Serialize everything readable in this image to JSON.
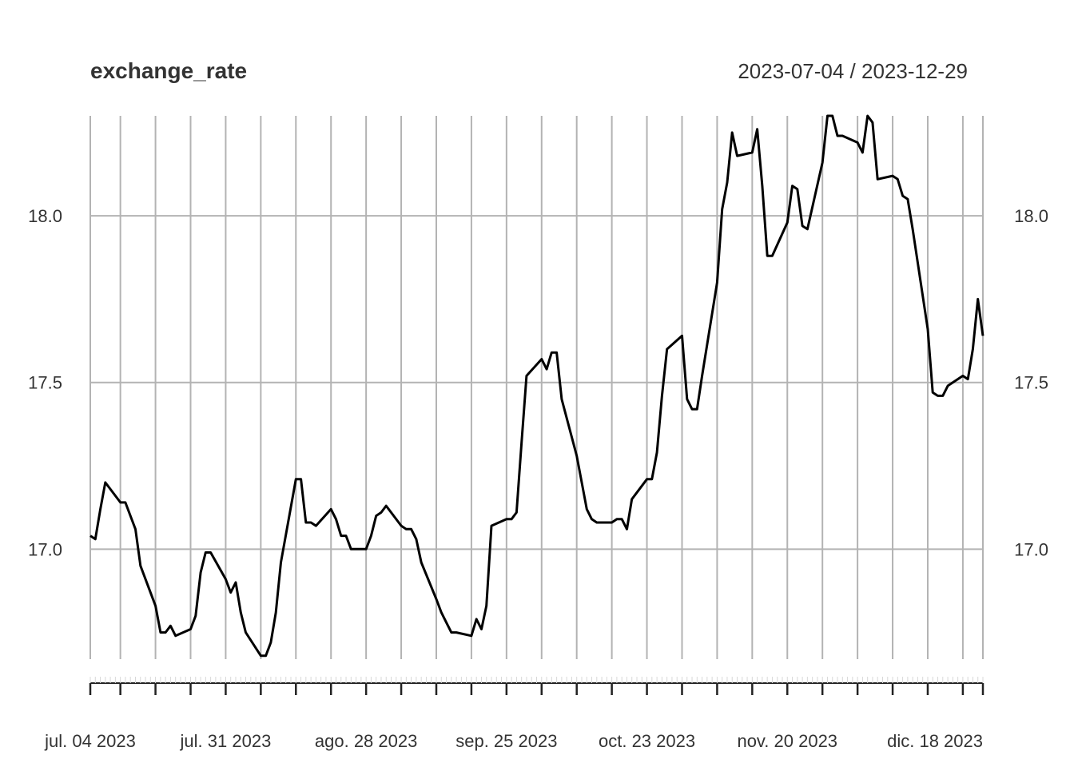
{
  "chart_data": {
    "type": "line",
    "title": "exchange_rate",
    "date_range": "2023-07-04 / 2023-12-29",
    "xlim": [
      "2023-07-04",
      "2023-12-29"
    ],
    "ylim": [
      16.67,
      18.3
    ],
    "y_ticks": [
      "17.0",
      "17.5",
      "18.0"
    ],
    "x_ticks": [
      {
        "date": "2023-07-04",
        "label": "jul. 04 2023"
      },
      {
        "date": "2023-07-31",
        "label": "jul. 31 2023"
      },
      {
        "date": "2023-08-28",
        "label": "ago. 28 2023"
      },
      {
        "date": "2023-09-25",
        "label": "sep. 25 2023"
      },
      {
        "date": "2023-10-23",
        "label": "oct. 23 2023"
      },
      {
        "date": "2023-11-20",
        "label": "nov. 20 2023"
      },
      {
        "date": "2023-12-18",
        "label": "dic. 18 2023"
      }
    ],
    "grid": true,
    "series": [
      {
        "values": [
          [
            "2023-07-04",
            17.04
          ],
          [
            "2023-07-05",
            17.03
          ],
          [
            "2023-07-06",
            17.12
          ],
          [
            "2023-07-07",
            17.2
          ],
          [
            "2023-07-10",
            17.14
          ],
          [
            "2023-07-11",
            17.14
          ],
          [
            "2023-07-12",
            17.1
          ],
          [
            "2023-07-13",
            17.06
          ],
          [
            "2023-07-14",
            16.95
          ],
          [
            "2023-07-17",
            16.83
          ],
          [
            "2023-07-18",
            16.75
          ],
          [
            "2023-07-19",
            16.75
          ],
          [
            "2023-07-20",
            16.77
          ],
          [
            "2023-07-21",
            16.74
          ],
          [
            "2023-07-24",
            16.76
          ],
          [
            "2023-07-25",
            16.8
          ],
          [
            "2023-07-26",
            16.93
          ],
          [
            "2023-07-27",
            16.99
          ],
          [
            "2023-07-28",
            16.99
          ],
          [
            "2023-07-31",
            16.91
          ],
          [
            "2023-08-01",
            16.87
          ],
          [
            "2023-08-02",
            16.9
          ],
          [
            "2023-08-03",
            16.81
          ],
          [
            "2023-08-04",
            16.75
          ],
          [
            "2023-08-07",
            16.68
          ],
          [
            "2023-08-08",
            16.68
          ],
          [
            "2023-08-09",
            16.72
          ],
          [
            "2023-08-10",
            16.81
          ],
          [
            "2023-08-11",
            16.96
          ],
          [
            "2023-08-14",
            17.21
          ],
          [
            "2023-08-15",
            17.21
          ],
          [
            "2023-08-16",
            17.08
          ],
          [
            "2023-08-17",
            17.08
          ],
          [
            "2023-08-18",
            17.07
          ],
          [
            "2023-08-21",
            17.12
          ],
          [
            "2023-08-22",
            17.09
          ],
          [
            "2023-08-23",
            17.04
          ],
          [
            "2023-08-24",
            17.04
          ],
          [
            "2023-08-25",
            17.0
          ],
          [
            "2023-08-28",
            17.0
          ],
          [
            "2023-08-29",
            17.04
          ],
          [
            "2023-08-30",
            17.1
          ],
          [
            "2023-08-31",
            17.11
          ],
          [
            "2023-09-01",
            17.13
          ],
          [
            "2023-09-04",
            17.07
          ],
          [
            "2023-09-05",
            17.06
          ],
          [
            "2023-09-06",
            17.06
          ],
          [
            "2023-09-07",
            17.03
          ],
          [
            "2023-09-08",
            16.96
          ],
          [
            "2023-09-11",
            16.85
          ],
          [
            "2023-09-12",
            16.81
          ],
          [
            "2023-09-13",
            16.78
          ],
          [
            "2023-09-14",
            16.75
          ],
          [
            "2023-09-15",
            16.75
          ],
          [
            "2023-09-18",
            16.74
          ],
          [
            "2023-09-19",
            16.79
          ],
          [
            "2023-09-20",
            16.76
          ],
          [
            "2023-09-21",
            16.83
          ],
          [
            "2023-09-22",
            17.07
          ],
          [
            "2023-09-25",
            17.09
          ],
          [
            "2023-09-26",
            17.09
          ],
          [
            "2023-09-27",
            17.11
          ],
          [
            "2023-09-28",
            17.32
          ],
          [
            "2023-09-29",
            17.52
          ],
          [
            "2023-10-02",
            17.57
          ],
          [
            "2023-10-03",
            17.54
          ],
          [
            "2023-10-04",
            17.59
          ],
          [
            "2023-10-05",
            17.59
          ],
          [
            "2023-10-06",
            17.45
          ],
          [
            "2023-10-09",
            17.28
          ],
          [
            "2023-10-10",
            17.2
          ],
          [
            "2023-10-11",
            17.12
          ],
          [
            "2023-10-12",
            17.09
          ],
          [
            "2023-10-13",
            17.08
          ],
          [
            "2023-10-16",
            17.08
          ],
          [
            "2023-10-17",
            17.09
          ],
          [
            "2023-10-18",
            17.09
          ],
          [
            "2023-10-19",
            17.06
          ],
          [
            "2023-10-20",
            17.15
          ],
          [
            "2023-10-23",
            17.21
          ],
          [
            "2023-10-24",
            17.21
          ],
          [
            "2023-10-25",
            17.29
          ],
          [
            "2023-10-26",
            17.46
          ],
          [
            "2023-10-27",
            17.6
          ],
          [
            "2023-10-30",
            17.64
          ],
          [
            "2023-10-31",
            17.45
          ],
          [
            "2023-11-01",
            17.42
          ],
          [
            "2023-11-02",
            17.42
          ],
          [
            "2023-11-03",
            17.52
          ],
          [
            "2023-11-06",
            17.8
          ],
          [
            "2023-11-07",
            18.02
          ],
          [
            "2023-11-08",
            18.1
          ],
          [
            "2023-11-09",
            18.25
          ],
          [
            "2023-11-10",
            18.18
          ],
          [
            "2023-11-13",
            18.19
          ],
          [
            "2023-11-14",
            18.26
          ],
          [
            "2023-11-15",
            18.09
          ],
          [
            "2023-11-16",
            17.88
          ],
          [
            "2023-11-17",
            17.88
          ],
          [
            "2023-11-20",
            17.98
          ],
          [
            "2023-11-21",
            18.09
          ],
          [
            "2023-11-22",
            18.08
          ],
          [
            "2023-11-23",
            17.97
          ],
          [
            "2023-11-24",
            17.96
          ],
          [
            "2023-11-27",
            18.16
          ],
          [
            "2023-11-28",
            18.3
          ],
          [
            "2023-11-29",
            18.3
          ],
          [
            "2023-11-30",
            18.24
          ],
          [
            "2023-12-01",
            18.24
          ],
          [
            "2023-12-04",
            18.22
          ],
          [
            "2023-12-05",
            18.19
          ],
          [
            "2023-12-06",
            18.3
          ],
          [
            "2023-12-07",
            18.28
          ],
          [
            "2023-12-08",
            18.11
          ],
          [
            "2023-12-11",
            18.12
          ],
          [
            "2023-12-12",
            18.11
          ],
          [
            "2023-12-13",
            18.06
          ],
          [
            "2023-12-14",
            18.05
          ],
          [
            "2023-12-15",
            17.96
          ],
          [
            "2023-12-18",
            17.66
          ],
          [
            "2023-12-19",
            17.47
          ],
          [
            "2023-12-20",
            17.46
          ],
          [
            "2023-12-21",
            17.46
          ],
          [
            "2023-12-22",
            17.49
          ],
          [
            "2023-12-25",
            17.52
          ],
          [
            "2023-12-26",
            17.51
          ],
          [
            "2023-12-27",
            17.6
          ],
          [
            "2023-12-28",
            17.75
          ],
          [
            "2023-12-29",
            17.64
          ]
        ]
      }
    ]
  }
}
